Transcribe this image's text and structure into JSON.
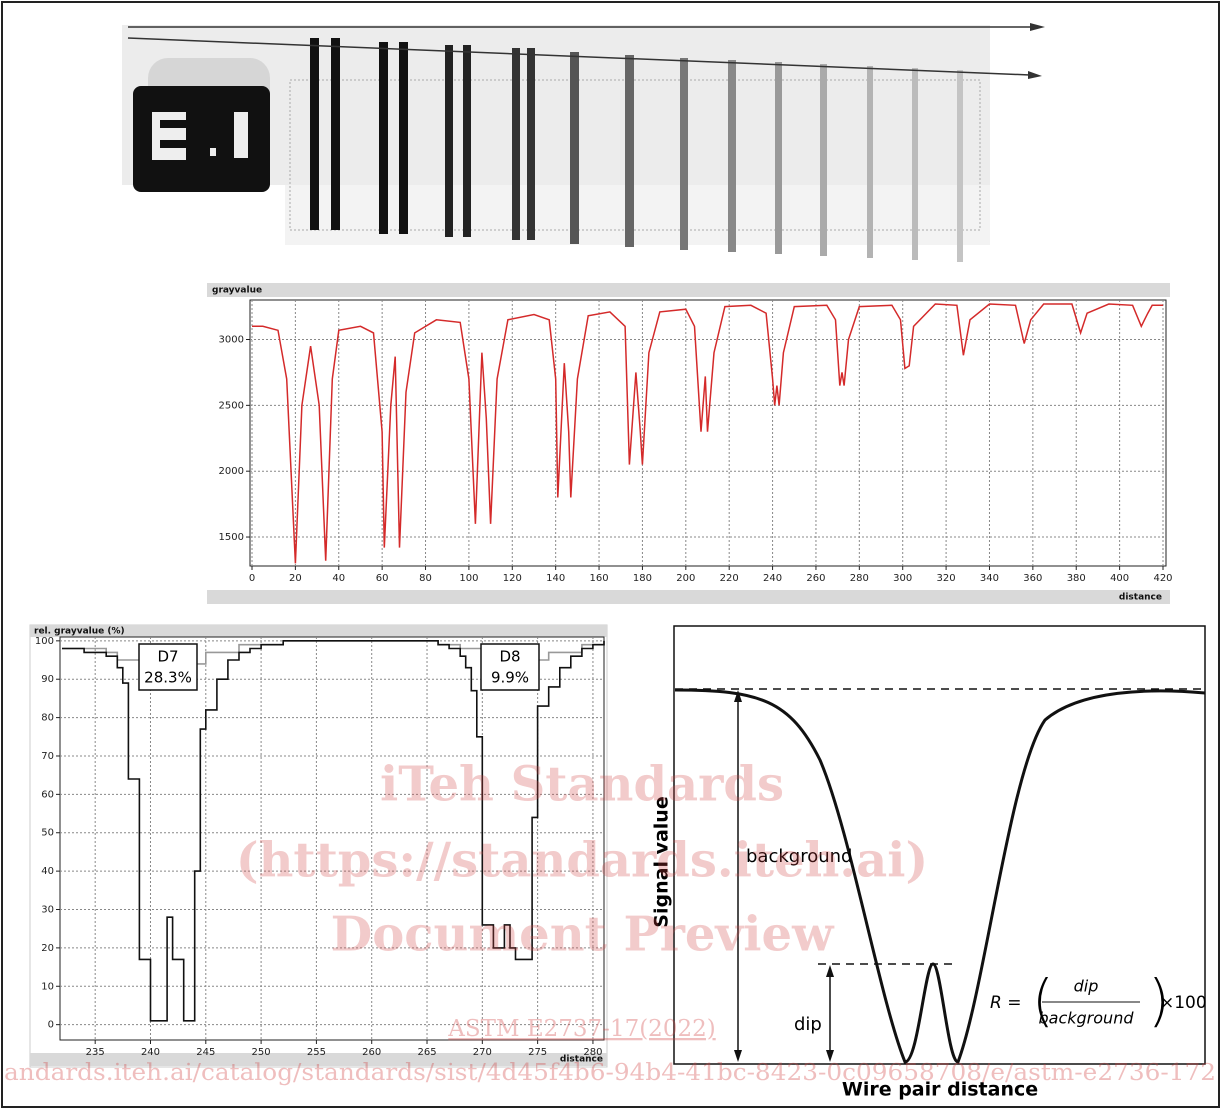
{
  "chart_data": [
    {
      "type": "line",
      "y_label": "grayvalue",
      "x_label": "distance",
      "xlim": [
        0,
        420
      ],
      "xticks": [
        0,
        20,
        40,
        60,
        80,
        100,
        120,
        140,
        160,
        180,
        200,
        220,
        240,
        260,
        280,
        300,
        320,
        340,
        360,
        380,
        400,
        420
      ],
      "ylim": [
        1280,
        3300
      ],
      "yticks": [
        1500,
        2000,
        2500,
        3000
      ],
      "grid": true,
      "series": [
        {
          "color": "#d42a2a",
          "x": [
            0,
            5,
            12,
            16,
            20,
            23,
            27,
            31,
            34,
            37,
            40,
            50,
            56,
            60,
            61,
            64,
            66,
            68,
            71,
            75,
            85,
            96,
            100,
            103,
            106,
            108,
            110,
            113,
            118,
            130,
            137,
            140,
            141,
            144,
            146,
            147,
            150,
            155,
            165,
            172,
            174,
            177,
            179,
            180,
            183,
            188,
            200,
            204,
            207,
            209,
            210,
            213,
            218,
            230,
            237,
            240,
            241,
            242,
            243,
            245,
            250,
            265,
            269,
            271,
            272,
            273,
            275,
            280,
            295,
            299,
            301,
            303,
            305,
            315,
            325,
            328,
            331,
            340,
            352,
            356,
            359,
            365,
            378,
            382,
            385,
            395,
            406,
            410,
            413,
            415,
            420
          ],
          "values": [
            3100,
            3100,
            3070,
            2700,
            1300,
            2500,
            2950,
            2500,
            1320,
            2700,
            3070,
            3100,
            3050,
            2300,
            1420,
            2500,
            2870,
            1420,
            2600,
            3050,
            3150,
            3130,
            2700,
            1600,
            2900,
            2400,
            1600,
            2700,
            3150,
            3190,
            3150,
            2700,
            1800,
            2820,
            2300,
            1800,
            2700,
            3180,
            3210,
            3100,
            2050,
            2750,
            2300,
            2050,
            2900,
            3210,
            3230,
            3100,
            2300,
            2720,
            2300,
            2900,
            3250,
            3260,
            3200,
            2700,
            2500,
            2650,
            2500,
            2900,
            3250,
            3260,
            3150,
            2650,
            2750,
            2650,
            3000,
            3250,
            3260,
            3150,
            2780,
            2800,
            3100,
            3270,
            3260,
            2880,
            3150,
            3270,
            3260,
            2970,
            3150,
            3270,
            3270,
            3050,
            3200,
            3270,
            3260,
            3100,
            3200,
            3260,
            3260
          ]
        }
      ]
    },
    {
      "type": "step",
      "y_label": "rel. grayvalue (%)",
      "x_label": "distance",
      "xlim": [
        232,
        281
      ],
      "xticks": [
        235,
        240,
        245,
        250,
        255,
        260,
        265,
        270,
        275,
        280
      ],
      "ylim": [
        -4,
        101
      ],
      "yticks": [
        0,
        10,
        20,
        30,
        40,
        50,
        60,
        70,
        80,
        90,
        100
      ],
      "grid": true,
      "annotations": [
        [
          "D7",
          "28.3%"
        ],
        [
          "D8",
          "9.9%"
        ]
      ],
      "series": [
        {
          "color": "#111111",
          "x": [
            232,
            233,
            234,
            235,
            236,
            237,
            237.5,
            238,
            238.5,
            239,
            239.5,
            240,
            241,
            241.5,
            242,
            243,
            243.5,
            244,
            244.5,
            245,
            246,
            247,
            248,
            249,
            250,
            252,
            265,
            266,
            267,
            268,
            268.5,
            269,
            269.5,
            270,
            271,
            271.5,
            272,
            272.5,
            273,
            274,
            274.5,
            275,
            276,
            277,
            278,
            279,
            280,
            281
          ],
          "values": [
            98,
            98,
            97,
            97,
            96,
            93,
            89,
            64,
            64,
            17,
            17,
            1,
            1,
            28,
            17,
            1,
            1,
            40,
            77,
            82,
            90,
            95,
            97,
            98,
            99,
            100,
            100,
            99,
            98,
            96,
            93,
            87,
            75,
            26,
            20,
            20,
            26,
            20,
            17,
            17,
            54,
            83,
            88,
            93,
            96,
            98,
            99,
            100
          ]
        },
        {
          "color": "#999999",
          "x": [
            232,
            236,
            237,
            242,
            244,
            245,
            248,
            252,
            264,
            266,
            268,
            270,
            272,
            275,
            276,
            279,
            281
          ],
          "values": [
            98,
            97,
            95,
            94,
            94,
            97,
            99,
            100,
            100,
            99,
            98,
            96,
            95,
            95,
            97,
            99,
            100
          ]
        }
      ]
    }
  ],
  "schematic": {
    "y_label": "Signal value",
    "x_label": "Wire pair distance",
    "background": "background",
    "dip": "dip",
    "formula": {
      "lhs": "R =",
      "numerator": "dip",
      "denominator": "background",
      "factor": "×100"
    }
  },
  "watermark": [
    "iTeh Standards",
    "(https://standards.iteh.ai)",
    "Document Preview",
    "ASTM E2737-17(2022)",
    "andards.iteh.ai/catalog/standards/sist/4d45f4b6-94b4-41bc-8423-0c09658708/e/astm-e2736-172"
  ]
}
